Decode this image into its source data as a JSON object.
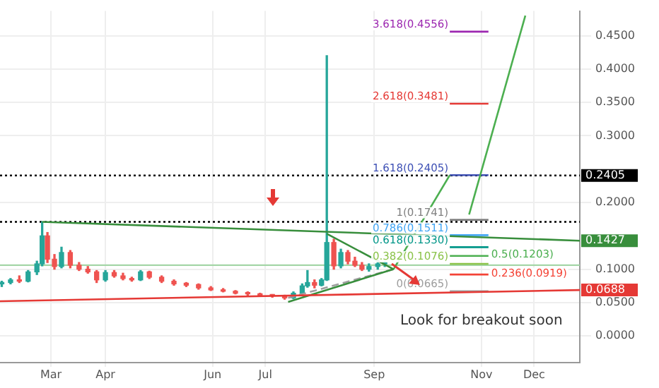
{
  "chart_data": {
    "type": "candlestick",
    "marker": "none",
    "grid": true,
    "legend": false,
    "xlim": [
      "--01-31",
      "--12-27"
    ],
    "ylim": [
      -0.04,
      0.487
    ],
    "xticks": [
      {
        "value": "--03-01",
        "label": "Mar"
      },
      {
        "value": "--04-01",
        "label": "Apr"
      },
      {
        "value": "--06-01",
        "label": "Jun"
      },
      {
        "value": "--07-01",
        "label": "Jul"
      },
      {
        "value": "--09-01",
        "label": "Sep"
      },
      {
        "value": "--11-01",
        "label": "Nov"
      },
      {
        "value": "--12-01",
        "label": "Dec"
      }
    ],
    "yticks": [
      {
        "value": 0,
        "label": "0.0000"
      },
      {
        "value": 0.05,
        "label": "0.0500"
      },
      {
        "value": 0.1,
        "label": "0.1000"
      },
      {
        "value": 0.2,
        "label": "0.2000"
      },
      {
        "value": 0.3,
        "label": "0.3000"
      },
      {
        "value": 0.35,
        "label": "0.3500"
      },
      {
        "value": 0.4,
        "label": "0.4000"
      },
      {
        "value": 0.45,
        "label": "0.4500"
      }
    ],
    "x": [
      "--02-01",
      "--02-06",
      "--02-11",
      "--02-16",
      "--02-21",
      "--02-24",
      "--02-27",
      "--03-03",
      "--03-07",
      "--03-12",
      "--03-17",
      "--03-22",
      "--03-27",
      "--04-01",
      "--04-06",
      "--04-11",
      "--04-16",
      "--04-21",
      "--04-26",
      "--05-03",
      "--05-10",
      "--05-17",
      "--05-24",
      "--05-31",
      "--06-07",
      "--06-14",
      "--06-21",
      "--06-28",
      "--07-05",
      "--07-12",
      "--07-17",
      "--07-22",
      "--07-25",
      "--07-29",
      "--08-02",
      "--08-05",
      "--08-09",
      "--08-13",
      "--08-17",
      "--08-21",
      "--08-25",
      "--08-29",
      "--09-03",
      "--09-07"
    ],
    "ohlc": [
      [
        0.078,
        0.082,
        0.074,
        0.08
      ],
      [
        0.08,
        0.086,
        0.078,
        0.084
      ],
      [
        0.084,
        0.09,
        0.08,
        0.082
      ],
      [
        0.082,
        0.098,
        0.081,
        0.096
      ],
      [
        0.096,
        0.112,
        0.092,
        0.108
      ],
      [
        0.108,
        0.171,
        0.105,
        0.15
      ],
      [
        0.15,
        0.155,
        0.11,
        0.115
      ],
      [
        0.115,
        0.122,
        0.1,
        0.104
      ],
      [
        0.104,
        0.133,
        0.102,
        0.125
      ],
      [
        0.125,
        0.128,
        0.102,
        0.106
      ],
      [
        0.106,
        0.11,
        0.098,
        0.1
      ],
      [
        0.1,
        0.104,
        0.094,
        0.096
      ],
      [
        0.096,
        0.098,
        0.08,
        0.084
      ],
      [
        0.084,
        0.098,
        0.082,
        0.095
      ],
      [
        0.095,
        0.098,
        0.088,
        0.09
      ],
      [
        0.09,
        0.094,
        0.084,
        0.086
      ],
      [
        0.086,
        0.088,
        0.082,
        0.084
      ],
      [
        0.084,
        0.098,
        0.083,
        0.096
      ],
      [
        0.096,
        0.097,
        0.086,
        0.088
      ],
      [
        0.088,
        0.09,
        0.08,
        0.082
      ],
      [
        0.082,
        0.084,
        0.076,
        0.078
      ],
      [
        0.079,
        0.08,
        0.074,
        0.076
      ],
      [
        0.077,
        0.078,
        0.07,
        0.072
      ],
      [
        0.072,
        0.074,
        0.068,
        0.069
      ],
      [
        0.069,
        0.071,
        0.066,
        0.067
      ],
      [
        0.067,
        0.068,
        0.063,
        0.064
      ],
      [
        0.064,
        0.066,
        0.061,
        0.063
      ],
      [
        0.063,
        0.064,
        0.06,
        0.061
      ],
      [
        0.061,
        0.062,
        0.058,
        0.06
      ],
      [
        0.06,
        0.061,
        0.055,
        0.057
      ],
      [
        0.057,
        0.066,
        0.056,
        0.064
      ],
      [
        0.064,
        0.078,
        0.062,
        0.075
      ],
      [
        0.075,
        0.098,
        0.073,
        0.08
      ],
      [
        0.08,
        0.084,
        0.072,
        0.076
      ],
      [
        0.076,
        0.086,
        0.075,
        0.084
      ],
      [
        0.084,
        0.42,
        0.083,
        0.14
      ],
      [
        0.14,
        0.145,
        0.1,
        0.105
      ],
      [
        0.105,
        0.13,
        0.102,
        0.125
      ],
      [
        0.125,
        0.128,
        0.108,
        0.112
      ],
      [
        0.112,
        0.118,
        0.104,
        0.106
      ],
      [
        0.106,
        0.11,
        0.098,
        0.1
      ],
      [
        0.1,
        0.108,
        0.097,
        0.104
      ],
      [
        0.104,
        0.112,
        0.1,
        0.108
      ],
      [
        0.108,
        0.112,
        0.104,
        0.11
      ]
    ],
    "colors": [
      "#26a69a",
      "#26a69a",
      "#ef5350",
      "#26a69a",
      "#26a69a",
      "#26a69a",
      "#ef5350",
      "#ef5350",
      "#26a69a",
      "#ef5350",
      "#ef5350",
      "#ef5350",
      "#ef5350",
      "#26a69a",
      "#ef5350",
      "#ef5350",
      "#ef5350",
      "#26a69a",
      "#ef5350",
      "#ef5350",
      "#ef5350",
      "#ef5350",
      "#ef5350",
      "#ef5350",
      "#ef5350",
      "#ef5350",
      "#ef5350",
      "#ef5350",
      "#ef5350",
      "#ef5350",
      "#26a69a",
      "#26a69a",
      "#26a69a",
      "#ef5350",
      "#26a69a",
      "#26a69a",
      "#ef5350",
      "#26a69a",
      "#ef5350",
      "#ef5350",
      "#ef5350",
      "#26a69a",
      "#26a69a",
      "#26a69a"
    ],
    "series": [
      {
        "type": "line",
        "color": "#e53935",
        "x": [
          "--01-31",
          "--12-27"
        ],
        "values": [
          0.052,
          0.0688
        ],
        "value_labels": [
          null,
          "0.0688"
        ]
      },
      {
        "type": "line",
        "color": "#388e3c",
        "x": [
          "--02-24",
          "--12-27"
        ],
        "values": [
          0.171,
          0.1427
        ],
        "value_labels": [
          null,
          "0.1427"
        ]
      },
      {
        "type": "line",
        "color": "#388e3c",
        "x": [
          "--08-05",
          "--09-12"
        ],
        "values": [
          0.153,
          0.1
        ]
      },
      {
        "type": "line",
        "color": "#388e3c",
        "x": [
          "--07-14",
          "--09-12"
        ],
        "values": [
          0.051,
          0.1
        ]
      },
      {
        "type": "line",
        "color": "#9e9e9e",
        "line_style": "dashed",
        "x": [
          "--07-14",
          "--09-12"
        ],
        "values": [
          0.057,
          0.1
        ]
      },
      {
        "type": "line",
        "color": "#4caf50",
        "x": [
          "--09-12",
          "--10-14"
        ],
        "values": [
          0.1,
          0.241
        ]
      },
      {
        "type": "line",
        "color": "#4caf50",
        "x": [
          "--10-25",
          "--11-26"
        ],
        "values": [
          0.182,
          0.48
        ]
      },
      {
        "type": "line",
        "name": "3.618(0.4556)",
        "color": "#9c27b0",
        "x": [
          "--10-14",
          "--11-05"
        ],
        "values": [
          0.456,
          0.456
        ]
      },
      {
        "type": "line",
        "name": "2.618(0.3481)",
        "color": "#e53935",
        "x": [
          "--10-14",
          "--11-05"
        ],
        "values": [
          0.348,
          0.348
        ]
      },
      {
        "type": "line",
        "name": "1.618(0.2405)",
        "color": "#3f51b5",
        "x": [
          "--10-14",
          "--11-05"
        ],
        "values": [
          0.241,
          0.241
        ]
      },
      {
        "type": "line",
        "name": "1(0.1741)",
        "color": "#808080",
        "x": [
          "--10-14",
          "--11-05"
        ],
        "values": [
          0.174,
          0.174
        ]
      },
      {
        "type": "line",
        "name": "0.786(0.1511)",
        "color": "#42a5f5",
        "x": [
          "--10-14",
          "--11-05"
        ],
        "values": [
          0.151,
          0.151
        ]
      },
      {
        "type": "line",
        "name": "0.618(0.1330)",
        "color": "#009688",
        "x": [
          "--10-14",
          "--11-05"
        ],
        "values": [
          0.133,
          0.133
        ]
      },
      {
        "type": "line",
        "name": "0.5(0.1203)",
        "color": "#4caf50",
        "x": [
          "--10-14",
          "--11-05"
        ],
        "values": [
          0.12,
          0.12
        ]
      },
      {
        "type": "line",
        "name": "0.382(0.1076)",
        "color": "#8bc34a",
        "x": [
          "--10-14",
          "--11-05"
        ],
        "values": [
          0.108,
          0.108
        ]
      },
      {
        "type": "line",
        "name": "0.236(0.0919)",
        "color": "#f44336",
        "x": [
          "--10-14",
          "--11-05"
        ],
        "values": [
          0.092,
          0.092
        ]
      },
      {
        "type": "line",
        "name": "0(0.0665)",
        "color": "#9e9e9e",
        "x": [
          "--10-14",
          "--11-05"
        ],
        "values": [
          0.067,
          0.067
        ]
      }
    ],
    "ref_lines": [
      {
        "axis": "y",
        "value": 0.2405,
        "label": "0.2405",
        "color": "#000000",
        "line_style": "dotted"
      },
      {
        "axis": "y",
        "value": 0.171,
        "color": "#000000",
        "line_style": "dotted"
      },
      {
        "axis": "y",
        "value": 0.106,
        "color": "#a5d6a7",
        "line_style": "solid"
      }
    ],
    "annotations": [
      "Look for breakout soon"
    ]
  }
}
